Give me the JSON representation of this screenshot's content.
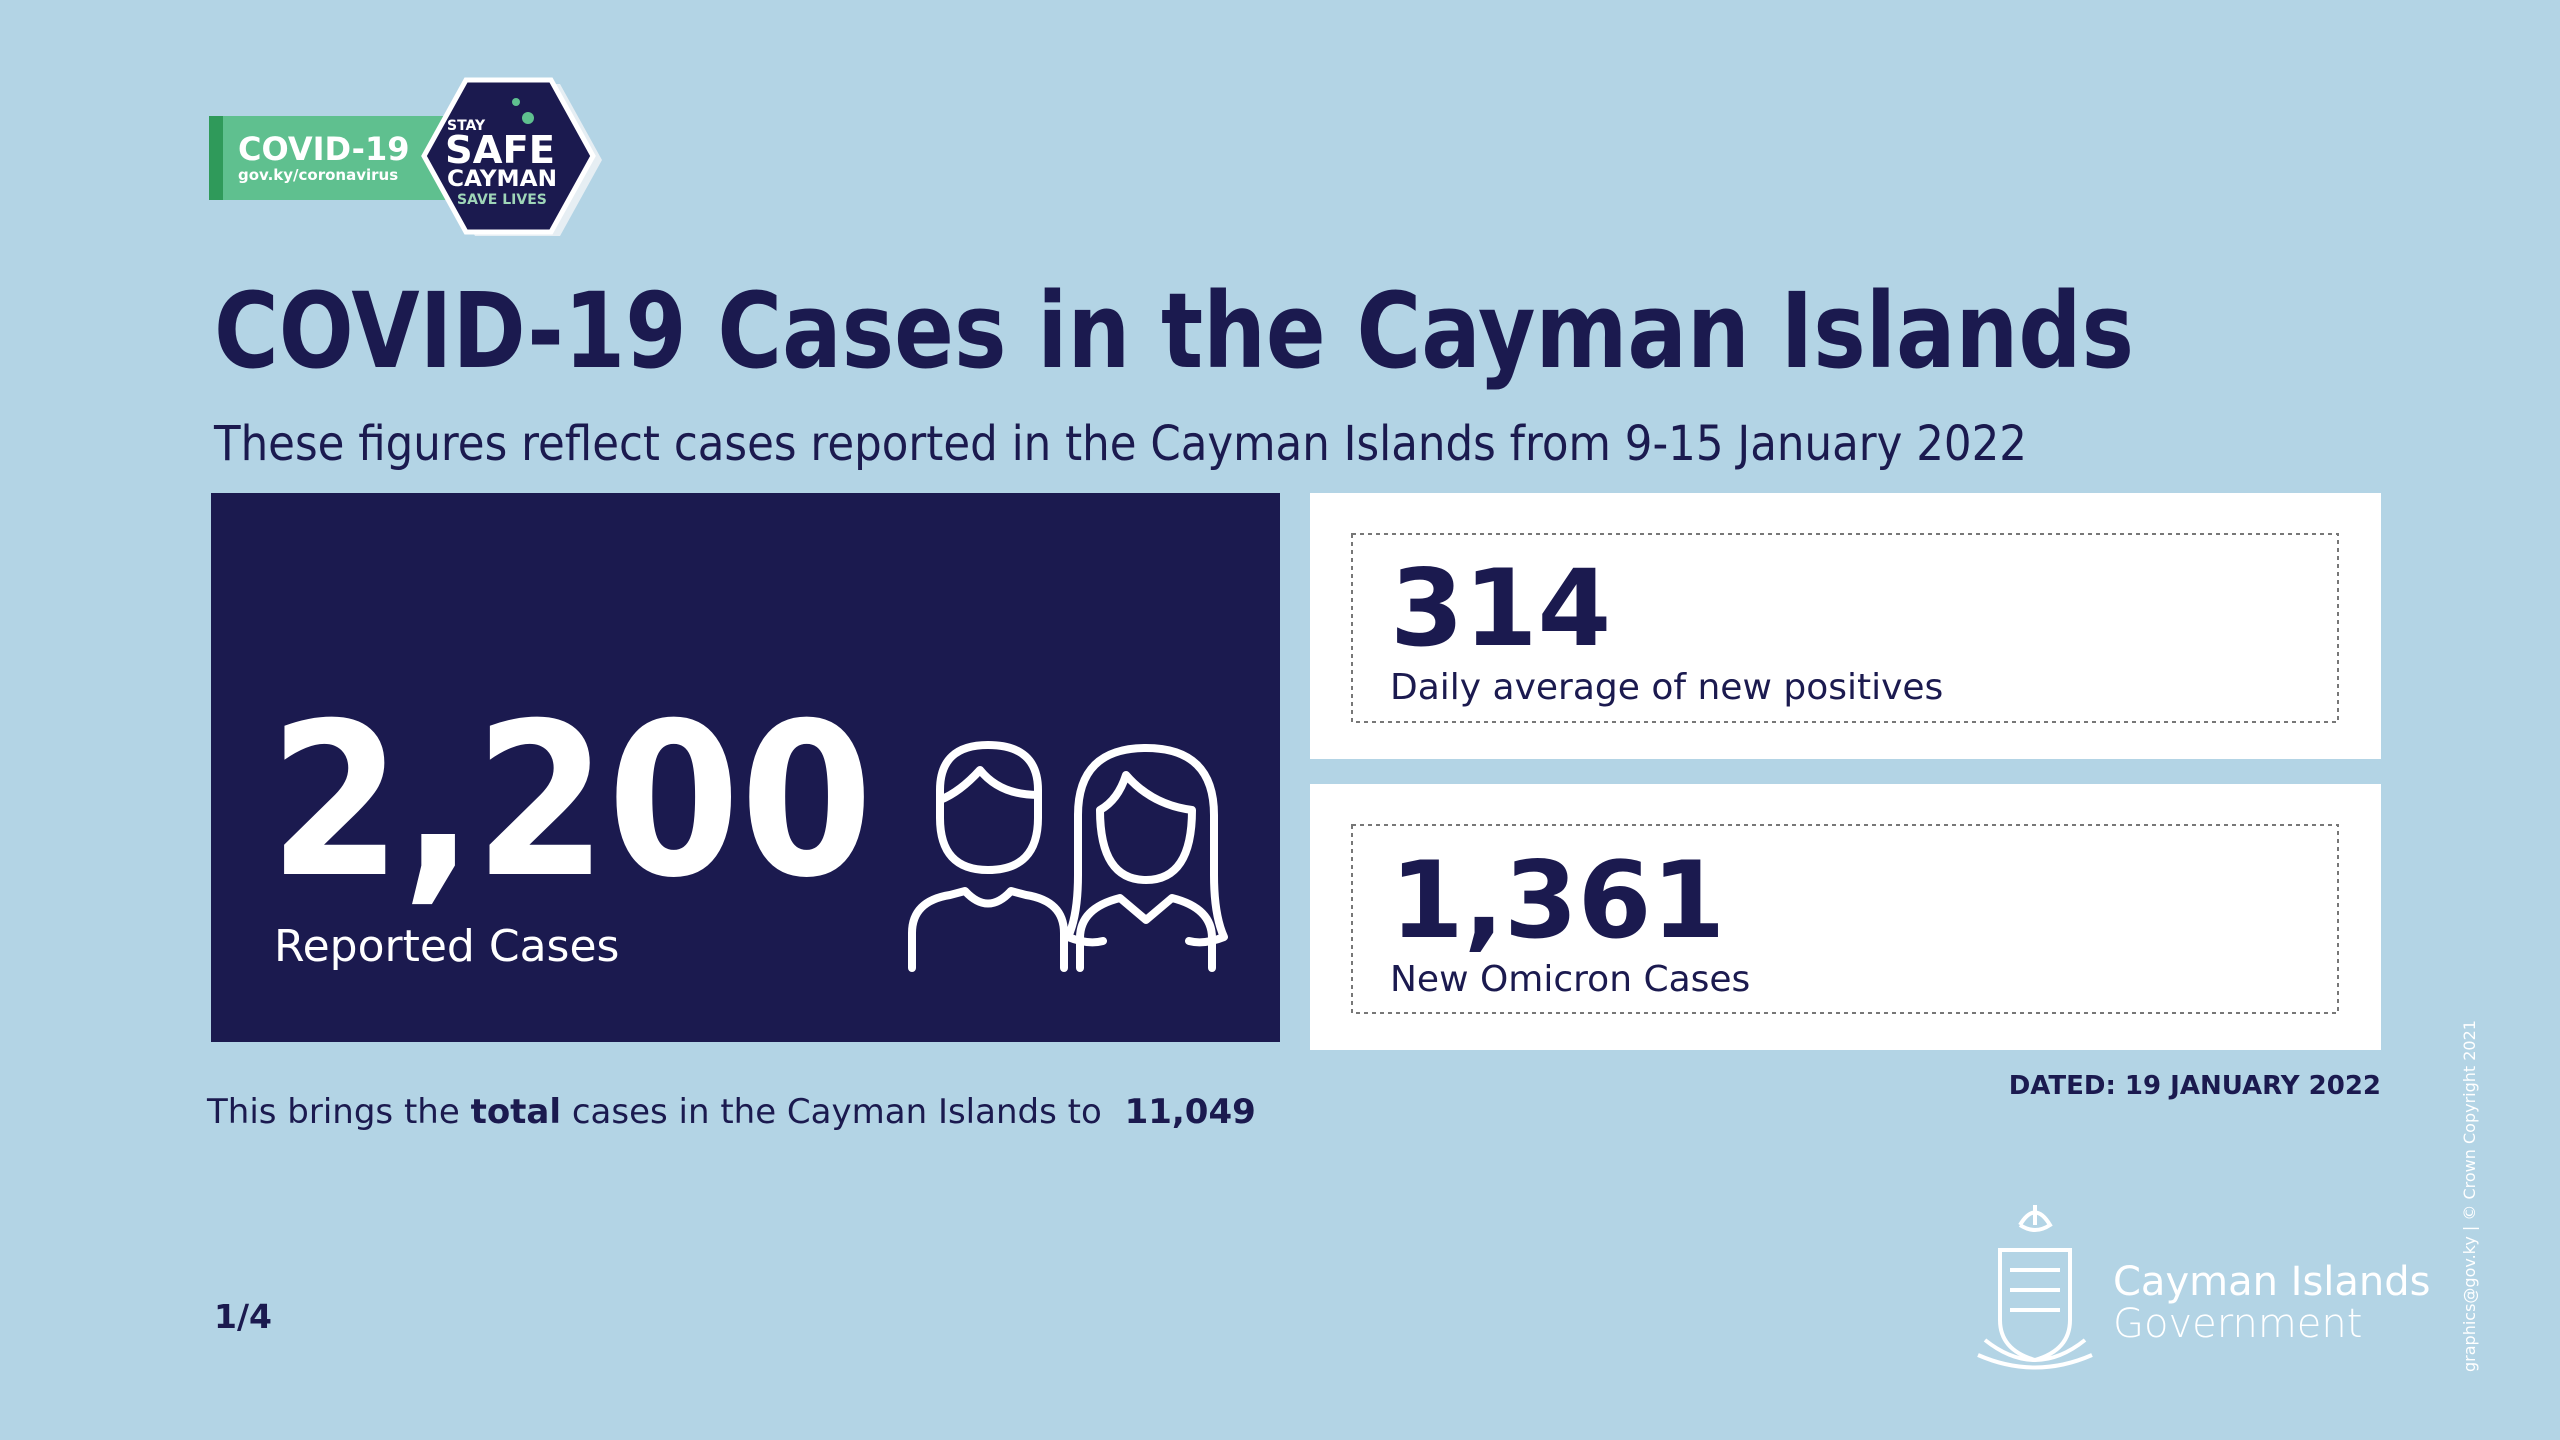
{
  "badge": {
    "title": "COVID-19",
    "url": "gov.ky/coronavirus",
    "stay": "STAY",
    "safe": "SAFE",
    "cayman": "CAYMAN",
    "save": "SAVE LIVES"
  },
  "header": {
    "title": "COVID-19 Cases in the Cayman Islands",
    "subtitle": "These figures reflect cases reported in the Cayman Islands from 9-15 January 2022"
  },
  "main_stat": {
    "value": "2,200",
    "label": "Reported Cases"
  },
  "stats": [
    {
      "value": "314",
      "label": "Daily average of new positives"
    },
    {
      "value": "1,361",
      "label": "New Omicron Cases"
    }
  ],
  "dated": "DATED: 19 JANUARY 2022",
  "total_line": {
    "before": "This brings the",
    "bold": "total",
    "after": "cases in the Cayman Islands to",
    "value": "11,049"
  },
  "page": "1/4",
  "logo": {
    "line1": "Cayman Islands",
    "line2": "Government"
  },
  "copyright": "graphics@gov.ky | © Crown Copyright 2021"
}
